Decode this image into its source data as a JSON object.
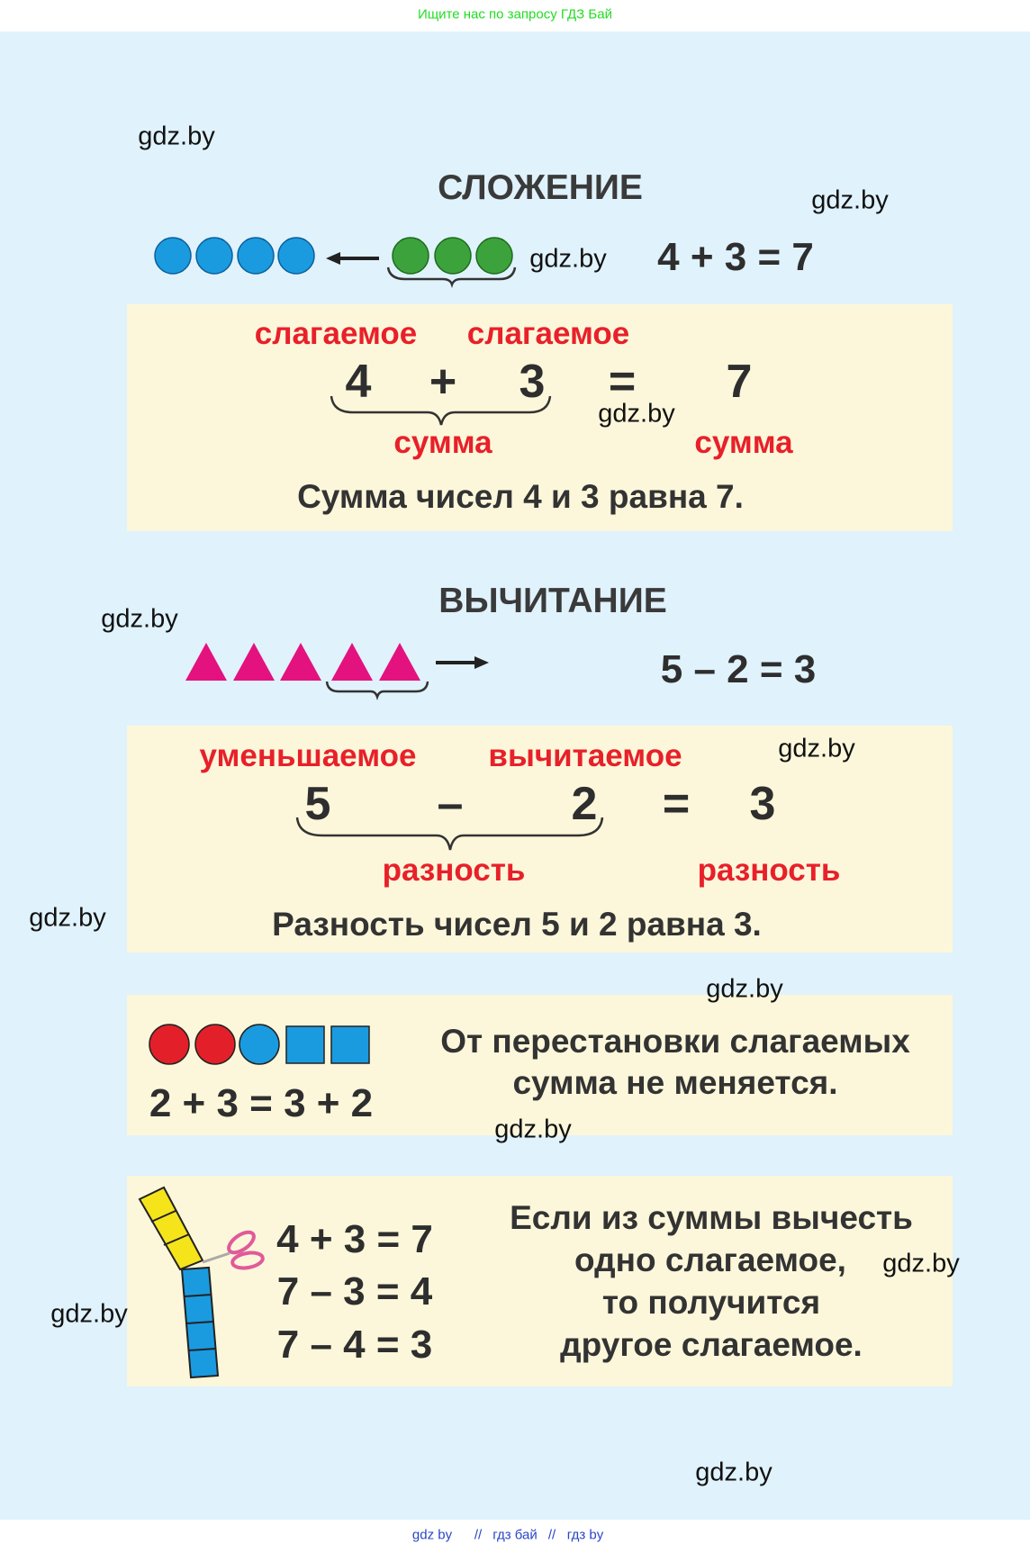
{
  "header": {
    "search_hint": "Ищите нас по запросу ГДЗ Бай"
  },
  "footer": {
    "links": [
      "gdz by",
      "гдз бай",
      "гдз by"
    ],
    "separator": "//"
  },
  "watermark": "gdz.by",
  "addition": {
    "title": "СЛОЖЕНИЕ",
    "equation": "4 + 3 = 7",
    "terms": {
      "addend_label": "слагаемое",
      "sum_label": "сумма",
      "a": "4",
      "op": "+",
      "b": "3",
      "eq": "=",
      "result": "7"
    },
    "sentence": "Сумма чисел 4 и 3 равна 7.",
    "colors": {
      "blue": "#1a9be0",
      "green": "#3ca33c"
    }
  },
  "subtraction": {
    "title": "ВЫЧИТАНИЕ",
    "equation": "5 – 2 = 3",
    "terms": {
      "minuend_label": "уменьшаемое",
      "subtrahend_label": "вычитаемое",
      "difference_label": "разность",
      "a": "5",
      "op": "–",
      "b": "2",
      "eq": "=",
      "result": "3"
    },
    "sentence": "Разность чисел 5 и 2 равна 3.",
    "colors": {
      "triangle": "#e3127e"
    }
  },
  "commutative": {
    "equation": "2 + 3 = 3 + 2",
    "rule": [
      "От перестановки слагаемых",
      "сумма не меняется."
    ]
  },
  "inverse": {
    "equations": [
      "4 + 3 = 7",
      "7 – 3 = 4",
      "7 – 4 = 3"
    ],
    "rule": [
      "Если из суммы вычесть",
      "одно слагаемое,",
      "то получится",
      "другое слагаемое."
    ]
  }
}
